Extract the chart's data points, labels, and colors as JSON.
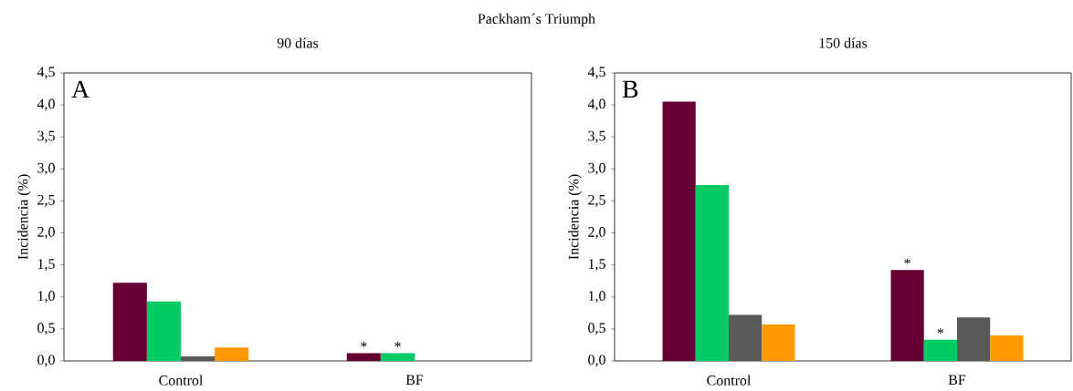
{
  "chart_data": [
    {
      "type": "bar",
      "title": "Packham´s Triumph",
      "subtitle": "90 días",
      "ylabel": "Incidencia (%)",
      "categories": [
        "Control",
        "BF"
      ],
      "series": [
        {
          "color": "#660033",
          "values": [
            1.22,
            0.12
          ]
        },
        {
          "color": "#00cc66",
          "values": [
            0.93,
            0.12
          ]
        },
        {
          "color": "#595959",
          "values": [
            0.07,
            0
          ]
        },
        {
          "color": "#ff9900",
          "values": [
            0.21,
            0
          ]
        }
      ],
      "ylim": [
        0,
        4.5
      ],
      "yticks": [
        {
          "value": 0,
          "label": "0,0"
        },
        {
          "value": 0.5,
          "label": "0,5"
        },
        {
          "value": 1,
          "label": "1,0"
        },
        {
          "value": 1.5,
          "label": "1,5"
        },
        {
          "value": 2,
          "label": "2,0"
        },
        {
          "value": 2.5,
          "label": "2,5"
        },
        {
          "value": 3,
          "label": "3,0"
        },
        {
          "value": 3.5,
          "label": "3,5"
        },
        {
          "value": 4,
          "label": "4,0"
        },
        {
          "value": 4.5,
          "label": "4,5"
        }
      ],
      "annotations": [
        "A",
        "*",
        "*"
      ]
    },
    {
      "type": "bar",
      "title": "150 días",
      "ylabel": "Incidencia (%)",
      "categories": [
        "Control",
        "BF"
      ],
      "series": [
        {
          "color": "#660033",
          "values": [
            4.05,
            1.42
          ]
        },
        {
          "color": "#00cc66",
          "values": [
            2.75,
            0.33
          ]
        },
        {
          "color": "#595959",
          "values": [
            0.72,
            0.68
          ]
        },
        {
          "color": "#ff9900",
          "values": [
            0.57,
            0.4
          ]
        }
      ],
      "ylim": [
        0,
        4.5
      ],
      "yticks": [
        {
          "value": 0,
          "label": "0,0"
        },
        {
          "value": 0.5,
          "label": "0,5"
        },
        {
          "value": 1,
          "label": "1,0"
        },
        {
          "value": 1.5,
          "label": "1,5"
        },
        {
          "value": 2,
          "label": "2,0"
        },
        {
          "value": 2.5,
          "label": "2,5"
        },
        {
          "value": 3,
          "label": "3,0"
        },
        {
          "value": 3.5,
          "label": "3,5"
        },
        {
          "value": 4,
          "label": "4,0"
        },
        {
          "value": 4.5,
          "label": "4,5"
        }
      ],
      "annotations": [
        "B",
        "*",
        "*"
      ]
    }
  ]
}
